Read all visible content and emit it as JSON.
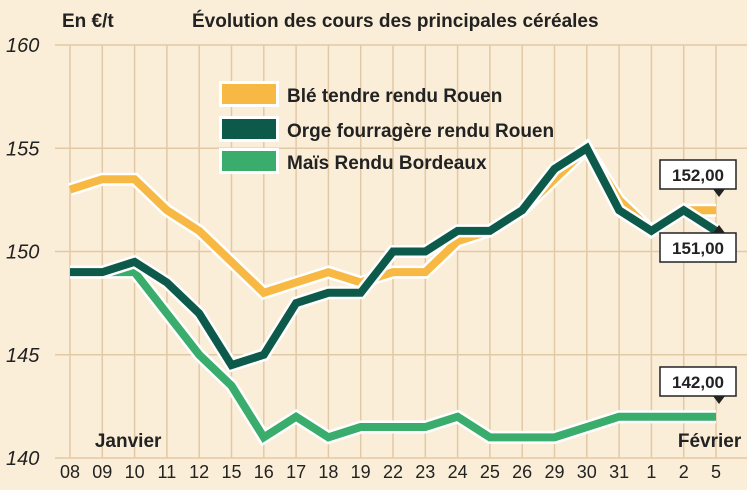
{
  "chart_data": {
    "type": "line",
    "title": "Évolution des cours des principales céréales",
    "unit_label": "En €/t",
    "ylim": [
      140,
      160
    ],
    "yticks": [
      140,
      145,
      150,
      155,
      160
    ],
    "categories": [
      "08",
      "09",
      "10",
      "11",
      "12",
      "15",
      "16",
      "17",
      "18",
      "19",
      "22",
      "23",
      "24",
      "25",
      "26",
      "29",
      "30",
      "31",
      "1",
      "2",
      "5"
    ],
    "month_labels": [
      {
        "text": "Janvier",
        "at_index": 1.8
      },
      {
        "text": "Février",
        "at_index": 19.8
      }
    ],
    "grid": true,
    "legend_position": "top-center",
    "series": [
      {
        "name": "Blé tendre rendu Rouen",
        "color": "#f7b944",
        "values": [
          153,
          153.5,
          153.5,
          152,
          151,
          149.5,
          148,
          148.5,
          149,
          148.5,
          149,
          149,
          150.5,
          151,
          152,
          153.5,
          155,
          152.5,
          151,
          152,
          152
        ]
      },
      {
        "name": "Orge fourragère rendu Rouen",
        "color": "#0d5a4b",
        "values": [
          149,
          149,
          149.5,
          148.5,
          147,
          144.5,
          145,
          147.5,
          148,
          148,
          150,
          150,
          151,
          151,
          152,
          154,
          155,
          152,
          151,
          152,
          151
        ]
      },
      {
        "name": "Maïs Rendu Bordeaux",
        "color": "#3aac6c",
        "values": [
          149,
          149,
          149,
          147,
          145,
          143.5,
          141,
          142,
          141,
          141.5,
          141.5,
          141.5,
          142,
          141,
          141,
          141,
          141.5,
          142,
          142,
          142,
          142
        ]
      }
    ],
    "callouts": [
      {
        "text": "152,00",
        "series": 0
      },
      {
        "text": "151,00",
        "series": 1
      },
      {
        "text": "142,00",
        "series": 2
      }
    ]
  }
}
